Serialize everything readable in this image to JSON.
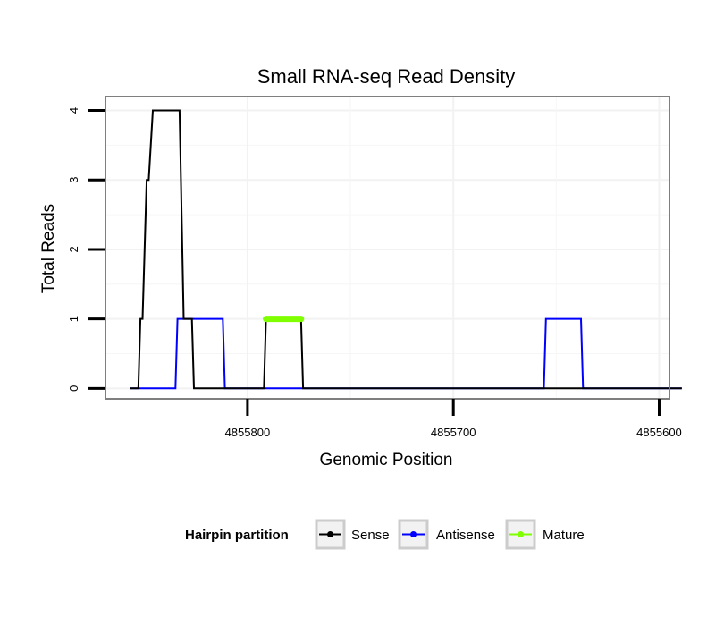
{
  "chart_data": {
    "type": "line",
    "title": "Small RNA-seq Read Density",
    "xlabel": "Genomic Position",
    "ylabel": "Total Reads",
    "x_reversed": true,
    "xlim": [
      4855869,
      4855595
    ],
    "ylim": [
      -0.15,
      4.2
    ],
    "x_ticks": [
      4855800,
      4855700,
      4855600
    ],
    "x_tick_labels": [
      "4855800",
      "4855700",
      "4855600"
    ],
    "y_ticks": [
      0,
      1,
      2,
      3,
      4
    ],
    "y_tick_labels": [
      "0",
      "1",
      "2",
      "3",
      "4"
    ],
    "grid": true,
    "legend": {
      "title": "Hairpin partition",
      "position": "bottom",
      "entries": [
        "Sense",
        "Antisense",
        "Mature"
      ]
    },
    "series": [
      {
        "name": "Sense",
        "color": "#000000",
        "x": [
          4855857,
          4855853,
          4855852,
          4855851,
          4855849,
          4855848,
          4855846,
          4855833,
          4855831,
          4855828,
          4855827,
          4855826,
          4855792,
          4855791,
          4855774,
          4855773,
          4855589
        ],
        "y": [
          0,
          0,
          1,
          1,
          3,
          3,
          4,
          4,
          1,
          1,
          1,
          0,
          0,
          1,
          1,
          0,
          0
        ]
      },
      {
        "name": "Antisense",
        "color": "#0000ff",
        "x": [
          4855857,
          4855835,
          4855834,
          4855812,
          4855811,
          4855773,
          4855772,
          4855656,
          4855655,
          4855638,
          4855637,
          4855589
        ],
        "y": [
          0,
          0,
          1,
          1,
          0,
          0,
          0,
          0,
          1,
          1,
          0,
          0
        ]
      },
      {
        "name": "Mature",
        "color": "#7fff00",
        "x": [
          4855791,
          4855774
        ],
        "y": [
          1,
          1
        ]
      }
    ]
  }
}
